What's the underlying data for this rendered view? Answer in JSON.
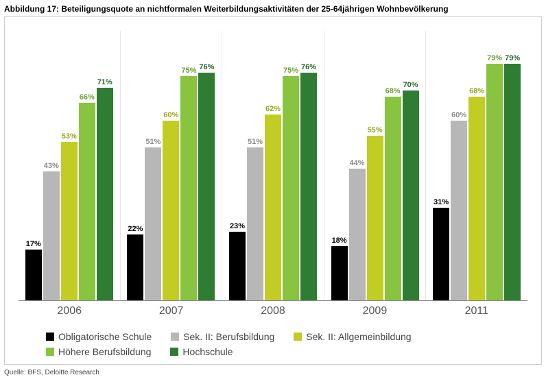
{
  "title": "Abbildung 17: Beteiligungsquote an nichtformalen Weiterbildungsaktivitäten der 25-64jährigen Wohnbevölkerung",
  "source": "Quelle: BFS, Deloitte Research",
  "chart": {
    "type": "bar",
    "y_max": 90,
    "background_color": "#ffffff",
    "border_color": "#cccccc",
    "axis_color": "#888888",
    "group_divider_color": "#e5e5e5",
    "xaxis_fontsize": 16,
    "xaxis_color": "#555555",
    "label_fontsize": 11,
    "categories": [
      "2006",
      "2007",
      "2008",
      "2009",
      "2011"
    ],
    "series": [
      {
        "name": "Obligatorische Schule",
        "color": "#000000",
        "label_color": "#000000"
      },
      {
        "name": "Sek. II: Berufsbildung",
        "color": "#b7b7b7",
        "label_color": "#8a8a8a"
      },
      {
        "name": "Sek. II: Allgemeinbildung",
        "color": "#c2cd23",
        "label_color": "#9aa51c"
      },
      {
        "name": "Höhere Berufsbildung",
        "color": "#89c440",
        "label_color": "#6aa02f"
      },
      {
        "name": "Hochschule",
        "color": "#2e7d32",
        "label_color": "#236627"
      }
    ],
    "data": [
      [
        17,
        43,
        53,
        66,
        71
      ],
      [
        22,
        51,
        60,
        75,
        76
      ],
      [
        23,
        51,
        62,
        75,
        76
      ],
      [
        18,
        44,
        55,
        68,
        70
      ],
      [
        31,
        60,
        68,
        79,
        79
      ]
    ]
  }
}
